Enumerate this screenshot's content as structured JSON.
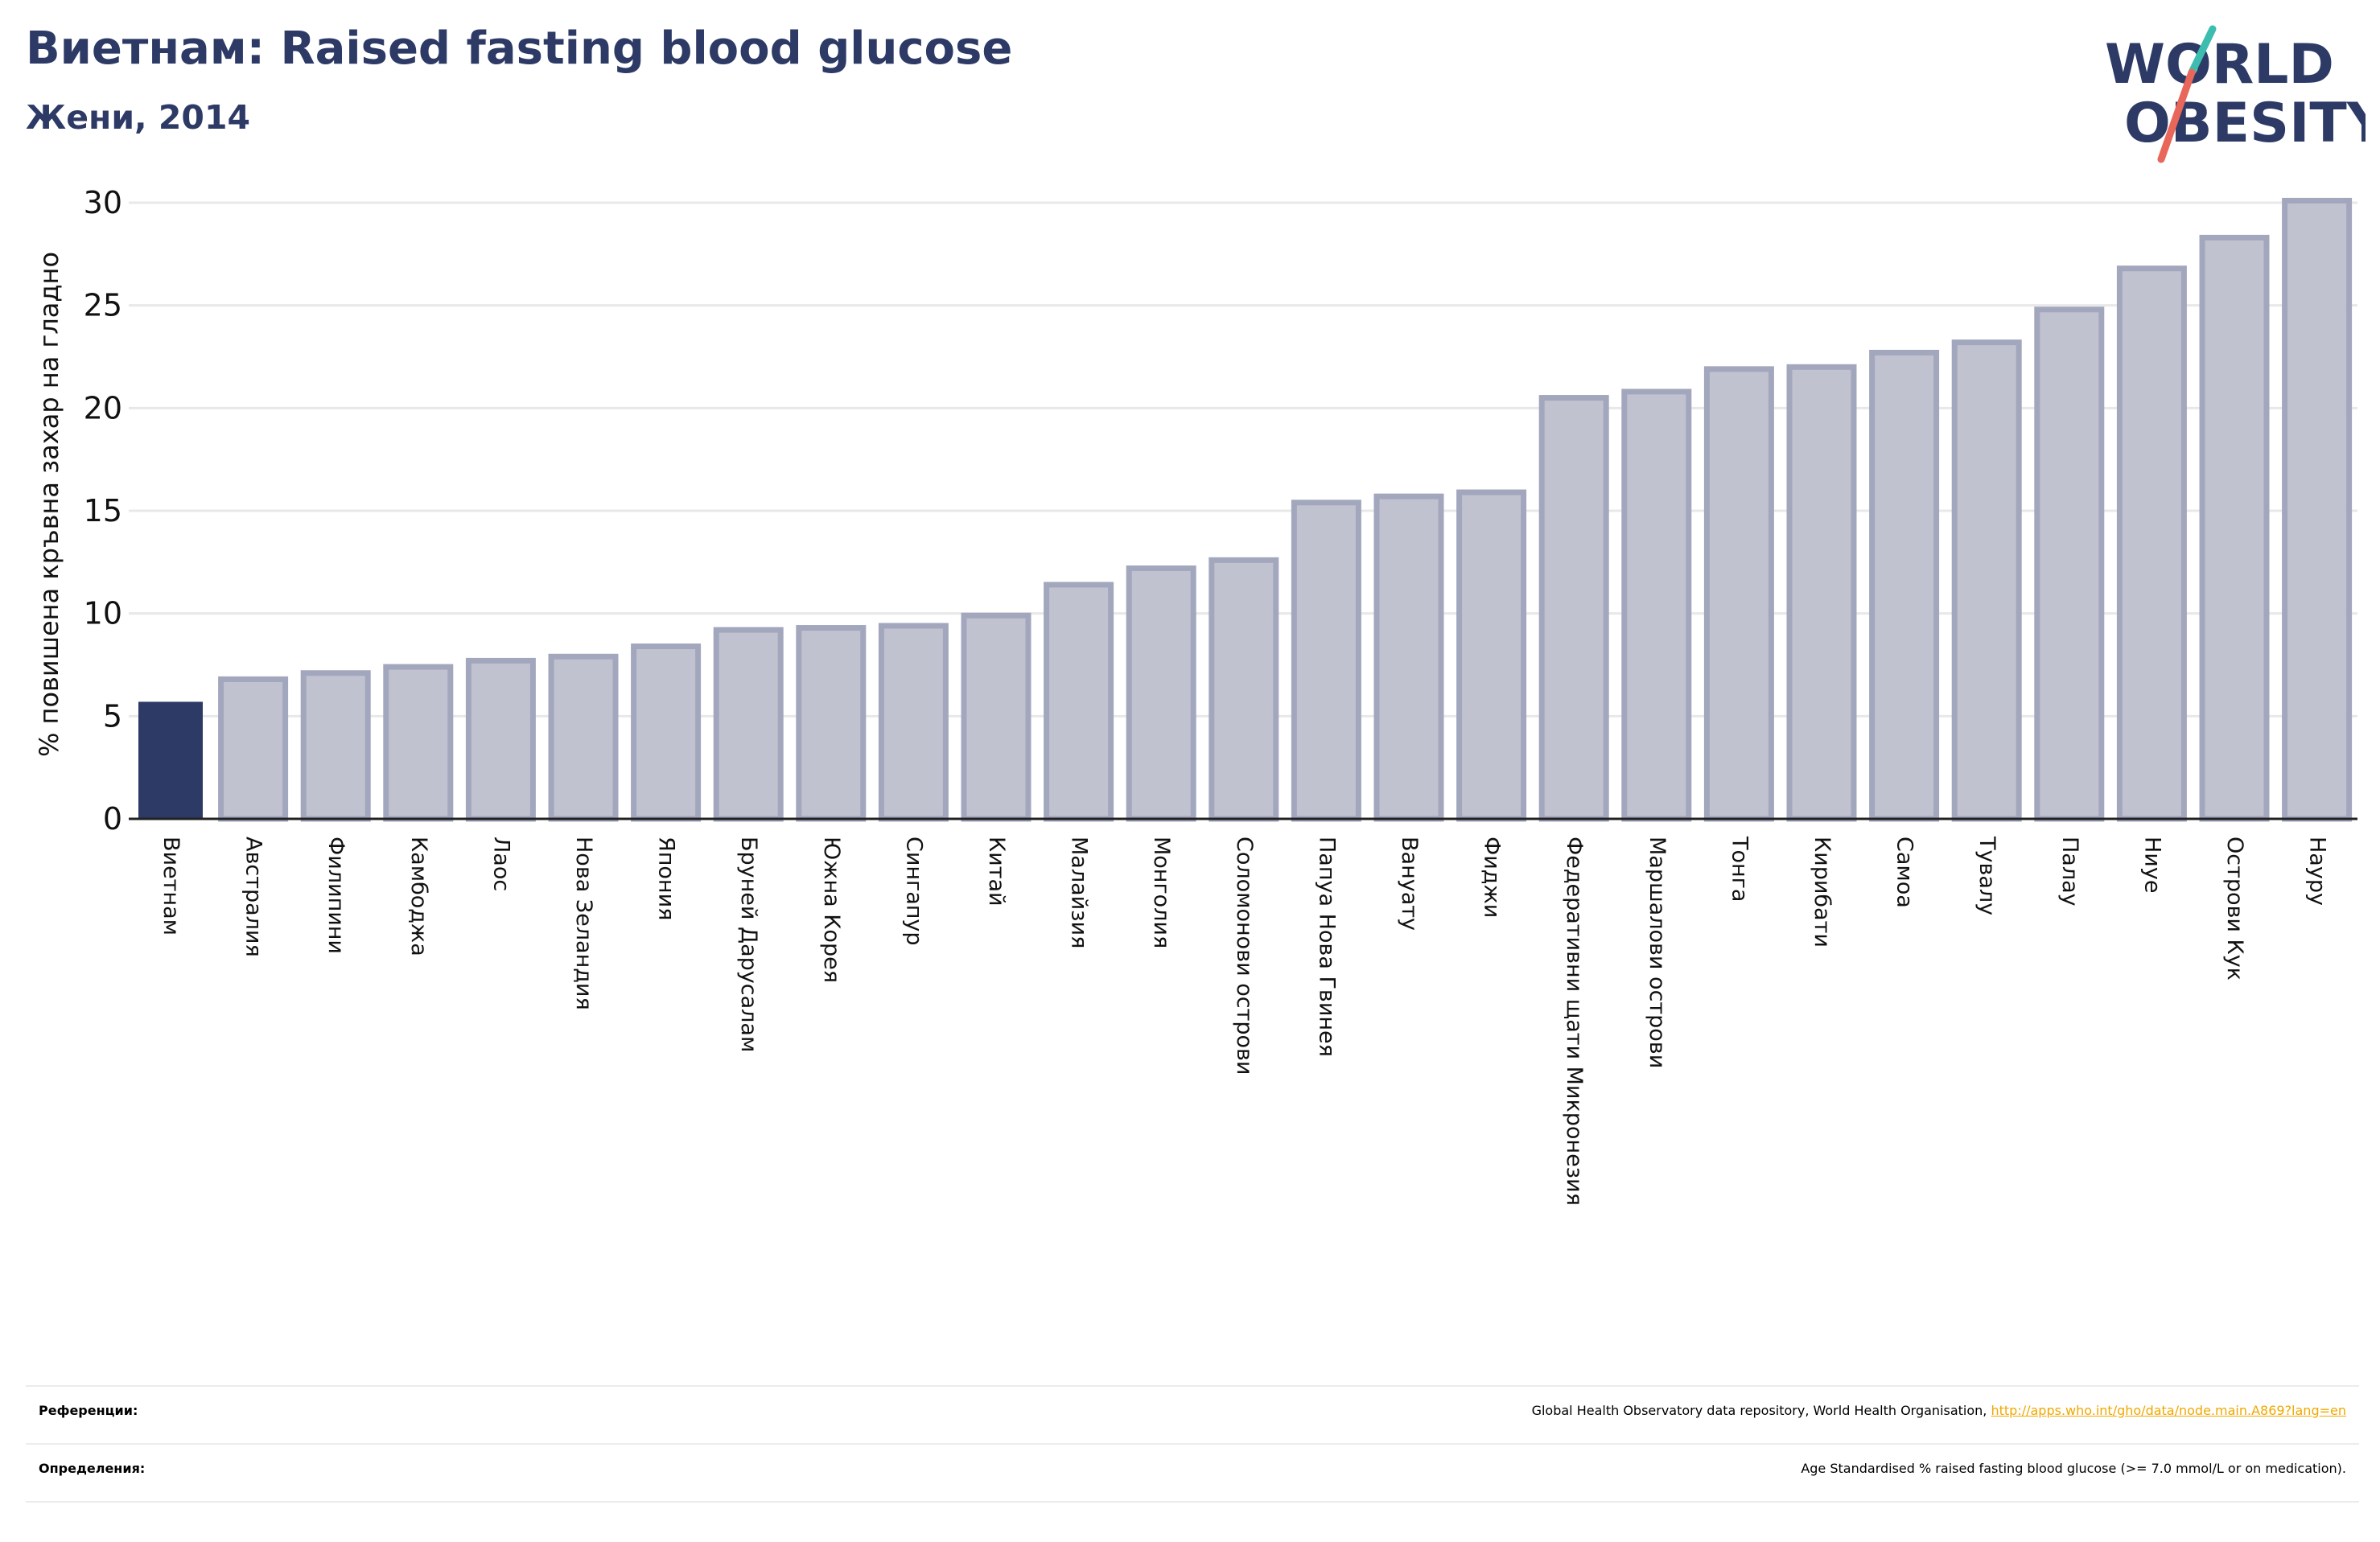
{
  "header": {
    "title": "Виетнам: Raised fasting blood glucose",
    "subtitle": "Жени, 2014"
  },
  "logo": {
    "line1": "WORLD",
    "line2": "OBESITY"
  },
  "colors": {
    "highlight": "#2d3a66",
    "bar_fill": "#c0c2d0",
    "bar_stroke": "#a3a7bd",
    "title": "#2d3a66",
    "link": "#f0a800",
    "logo_teal": "#3dbdb0",
    "logo_red": "#e8675a"
  },
  "chart_data": {
    "type": "bar",
    "ylabel": "% повишена кръвна захар на гладно",
    "ylim": [
      0,
      30
    ],
    "yticks": [
      0,
      5,
      10,
      15,
      20,
      25,
      30
    ],
    "grid": true,
    "highlight_category": "Виетнам",
    "categories": [
      "Виетнам",
      "Австралия",
      "Филипини",
      "Камбоджа",
      "Лаос",
      "Нова Зеландия",
      "Япония",
      "Бруней Дарусалам",
      "Южна Корея",
      "Сингапур",
      "Китай",
      "Малайзия",
      "Монголия",
      "Соломонови острови",
      "Папуа Нова Гвинея",
      "Вануату",
      "Фиджи",
      "Федеративни щати Микронезия",
      "Маршалови острови",
      "Тонга",
      "Кирибати",
      "Самоа",
      "Тувалу",
      "Палау",
      "Ниуе",
      "Острови Кук",
      "Науру"
    ],
    "values": [
      5.7,
      6.8,
      7.1,
      7.4,
      7.7,
      7.9,
      8.4,
      9.2,
      9.3,
      9.4,
      9.9,
      11.4,
      12.2,
      12.6,
      15.4,
      15.7,
      15.9,
      20.5,
      20.8,
      21.9,
      22.0,
      22.7,
      23.2,
      24.8,
      26.8,
      28.3,
      30.1
    ]
  },
  "footer": {
    "references_label": "Референции:",
    "references_text": "Global Health Observatory data repository, World Health Organisation, ",
    "references_link": "http://apps.who.int/gho/data/node.main.A869?lang=en",
    "definitions_label": "Определения:",
    "definitions_text": "Age Standardised % raised fasting blood glucose (>= 7.0 mmol/L or on medication)."
  }
}
